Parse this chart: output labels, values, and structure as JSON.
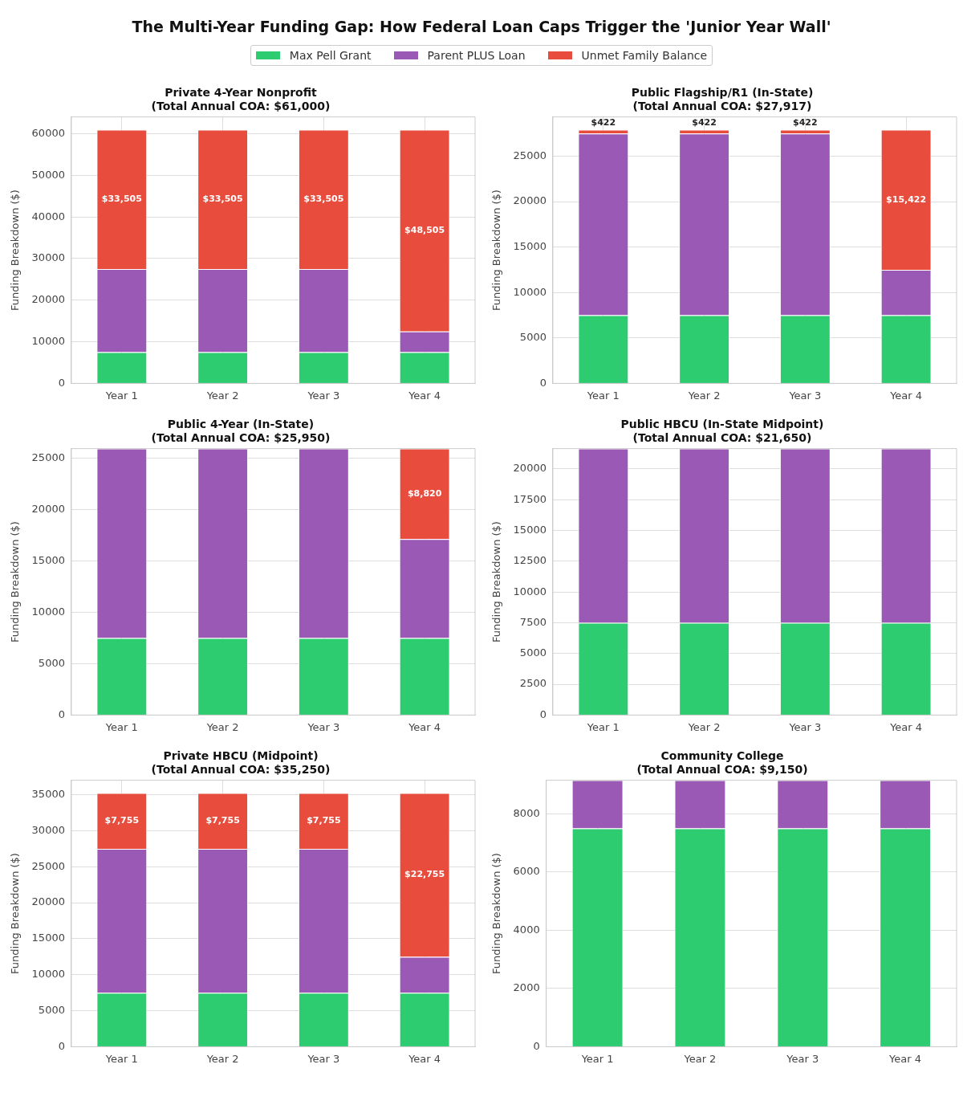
{
  "chart_data": [
    {
      "type": "bar",
      "stacked": true,
      "title": "Private 4-Year Nonprofit\n(Total Annual COA: $61,000)",
      "ylabel": "Funding Breakdown ($)",
      "legend": "top",
      "grid": true,
      "annotations": [
        "The Multi-Year Funding Gap: How Federal Loan Caps Trigger the 'Junior Year Wall'"
      ],
      "categories": [
        "Year 1",
        "Year 2",
        "Year 3",
        "Year 4"
      ],
      "ylim": [
        0,
        64050
      ],
      "yticks": [
        0,
        10000,
        20000,
        30000,
        40000,
        50000,
        60000
      ],
      "series": [
        {
          "name": "Max Pell Grant",
          "color": "#2ecc71",
          "values": [
            7495,
            7495,
            7495,
            7495
          ]
        },
        {
          "name": "Parent PLUS Loan",
          "color": "#9b59b6",
          "values": [
            20000,
            20000,
            20000,
            5000
          ]
        },
        {
          "name": "Unmet Family Balance",
          "color": "#e74c3c",
          "values": [
            33505,
            33505,
            33505,
            48505
          ],
          "value_labels": [
            "$33,505",
            "$33,505",
            "$33,505",
            "$48,505"
          ]
        }
      ]
    },
    {
      "type": "bar",
      "stacked": true,
      "title": "Public Flagship/R1 (In-State)\n(Total Annual COA: $27,917)",
      "ylabel": "Funding Breakdown ($)",
      "grid": true,
      "categories": [
        "Year 1",
        "Year 2",
        "Year 3",
        "Year 4"
      ],
      "ylim": [
        0,
        29313
      ],
      "yticks": [
        0,
        5000,
        10000,
        15000,
        20000,
        25000
      ],
      "series": [
        {
          "color": "#2ecc71",
          "values": [
            7495,
            7495,
            7495,
            7495
          ]
        },
        {
          "color": "#9b59b6",
          "values": [
            20000,
            20000,
            20000,
            5000
          ]
        },
        {
          "color": "#e74c3c",
          "values": [
            422,
            422,
            422,
            15422
          ],
          "value_labels": [
            "$422",
            "$422",
            "$422",
            "$15,422"
          ]
        }
      ]
    },
    {
      "type": "bar",
      "stacked": true,
      "title": "Public 4-Year (In-State)\n(Total Annual COA: $25,950)",
      "ylabel": "Funding Breakdown ($)",
      "grid": true,
      "categories": [
        "Year 1",
        "Year 2",
        "Year 3",
        "Year 4"
      ],
      "ylim": [
        0,
        25950
      ],
      "yticks": [
        0,
        5000,
        10000,
        15000,
        20000,
        25000
      ],
      "series": [
        {
          "color": "#2ecc71",
          "values": [
            7495,
            7495,
            7495,
            7495
          ]
        },
        {
          "color": "#9b59b6",
          "values": [
            18455,
            18455,
            18455,
            9635
          ]
        },
        {
          "color": "#e74c3c",
          "values": [
            0,
            0,
            0,
            8820
          ],
          "value_labels": [
            null,
            null,
            null,
            "$8,820"
          ]
        }
      ]
    },
    {
      "type": "bar",
      "stacked": true,
      "title": "Public HBCU (In-State Midpoint)\n(Total Annual COA: $21,650)",
      "ylabel": "Funding Breakdown ($)",
      "grid": true,
      "categories": [
        "Year 1",
        "Year 2",
        "Year 3",
        "Year 4"
      ],
      "ylim": [
        0,
        21650
      ],
      "yticks": [
        0,
        2500,
        5000,
        7500,
        10000,
        12500,
        15000,
        17500,
        20000
      ],
      "series": [
        {
          "color": "#2ecc71",
          "values": [
            7495,
            7495,
            7495,
            7495
          ]
        },
        {
          "color": "#9b59b6",
          "values": [
            14155,
            14155,
            14155,
            14155
          ]
        }
      ]
    },
    {
      "type": "bar",
      "stacked": true,
      "title": "Private HBCU (Midpoint)\n(Total Annual COA: $35,250)",
      "ylabel": "Funding Breakdown ($)",
      "grid": true,
      "categories": [
        "Year 1",
        "Year 2",
        "Year 3",
        "Year 4"
      ],
      "ylim": [
        0,
        37012
      ],
      "yticks": [
        0,
        5000,
        10000,
        15000,
        20000,
        25000,
        30000,
        35000
      ],
      "series": [
        {
          "color": "#2ecc71",
          "values": [
            7495,
            7495,
            7495,
            7495
          ]
        },
        {
          "color": "#9b59b6",
          "values": [
            20000,
            20000,
            20000,
            5000
          ]
        },
        {
          "color": "#e74c3c",
          "values": [
            7755,
            7755,
            7755,
            22755
          ],
          "value_labels": [
            "$7,755",
            "$7,755",
            "$7,755",
            "$22,755"
          ]
        }
      ]
    },
    {
      "type": "bar",
      "stacked": true,
      "title": "Community College\n(Total Annual COA: $9,150)",
      "ylabel": "Funding Breakdown ($)",
      "grid": true,
      "categories": [
        "Year 1",
        "Year 2",
        "Year 3",
        "Year 4"
      ],
      "ylim": [
        0,
        9150
      ],
      "yticks": [
        0,
        2000,
        4000,
        6000,
        8000
      ],
      "series": [
        {
          "color": "#2ecc71",
          "values": [
            7495,
            7495,
            7495,
            7495
          ]
        },
        {
          "color": "#9b59b6",
          "values": [
            1655,
            1655,
            1655,
            1655
          ]
        }
      ]
    }
  ]
}
